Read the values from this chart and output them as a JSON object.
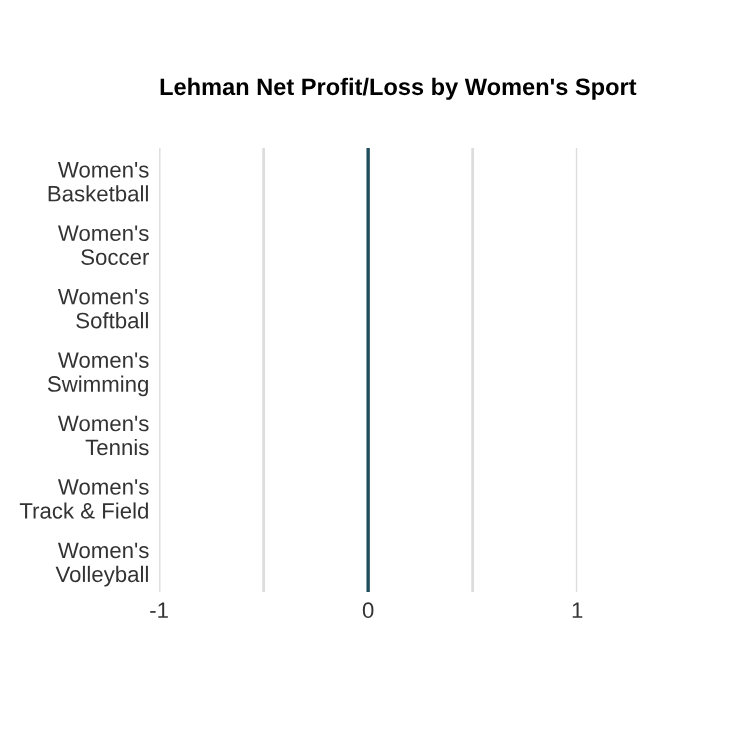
{
  "chart_data": {
    "type": "bar",
    "orientation": "horizontal",
    "title": "Lehman Net Profit/Loss by Women's Sport",
    "categories": [
      "Women's Basketball",
      "Women's Soccer",
      "Women's Softball",
      "Women's Swimming",
      "Women's Tennis",
      "Women's Track & Field",
      "Women's Volleyball"
    ],
    "values": [
      0,
      0,
      0,
      0,
      0,
      0,
      0
    ],
    "color": "#1f4e5f",
    "xlim": [
      -1,
      1
    ],
    "xticks": [
      -1,
      {
        "value": -0.5,
        "label": null
      },
      0,
      {
        "value": 0.5,
        "label": null
      },
      1
    ],
    "grid": "x"
  }
}
